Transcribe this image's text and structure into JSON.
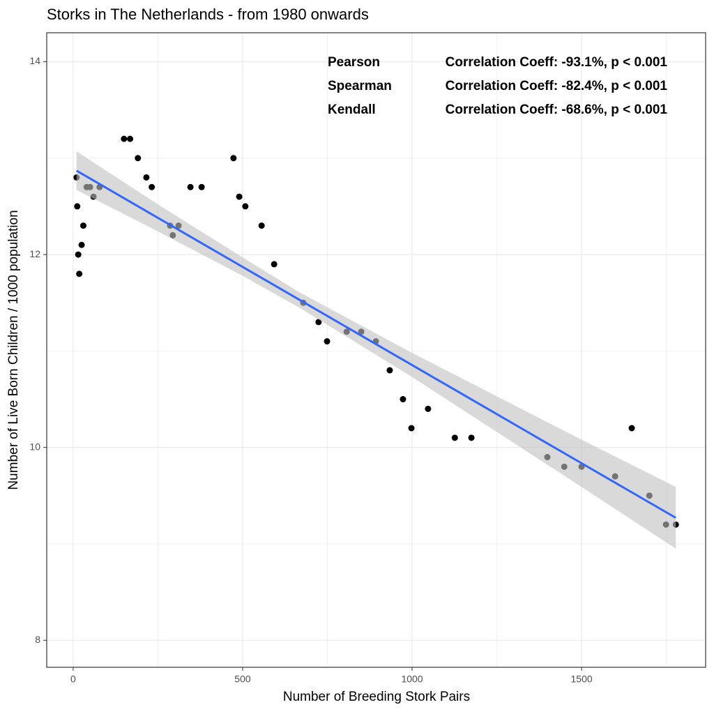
{
  "chart_data": {
    "type": "scatter",
    "title": "Storks in The Netherlands - from 1980 onwards",
    "x_label": "Number of Breeding Stork Pairs",
    "y_label": "Number of Live Born Children / 1000 population",
    "annotations": [
      {
        "method": "Pearson",
        "text": "Correlation Coeff: -93.1%, p < 0.001"
      },
      {
        "method": "Spearman",
        "text": "Correlation Coeff: -82.4%, p < 0.001"
      },
      {
        "method": "Kendall",
        "text": "Correlation Coeff: -68.6%, p < 0.001"
      }
    ],
    "x": [
      10,
      12,
      15,
      18,
      25,
      30,
      40,
      50,
      60,
      78,
      150,
      168,
      191,
      216,
      232,
      286,
      294,
      311,
      346,
      379,
      473,
      490,
      508,
      556,
      593,
      679,
      724,
      749,
      807,
      850,
      893,
      934,
      973,
      998,
      1047,
      1126,
      1175,
      1399,
      1449,
      1500,
      1599,
      1648,
      1700,
      1749,
      1778
    ],
    "values": [
      12.8,
      12.5,
      12.0,
      11.8,
      12.1,
      12.3,
      12.7,
      12.7,
      12.6,
      12.7,
      13.2,
      13.2,
      13.0,
      12.8,
      12.7,
      12.3,
      12.2,
      12.3,
      12.7,
      12.7,
      13.0,
      12.6,
      12.5,
      12.3,
      11.9,
      11.5,
      11.3,
      11.1,
      11.2,
      11.2,
      11.1,
      10.8,
      10.5,
      10.2,
      10.4,
      10.1,
      10.1,
      9.9,
      9.8,
      9.8,
      9.7,
      10.2,
      9.5,
      9.2,
      9.2
    ],
    "color": "#000000",
    "fit": {
      "x": [
        10,
        250,
        500,
        667,
        1000,
        1250,
        1500,
        1778
      ],
      "values": [
        12.87,
        12.381,
        11.872,
        11.532,
        10.854,
        10.345,
        9.836,
        9.27
      ],
      "lower": [
        12.67,
        12.24,
        11.78,
        11.45,
        10.73,
        10.16,
        9.59,
        8.95
      ],
      "upper": [
        13.07,
        12.52,
        11.97,
        11.61,
        10.98,
        10.53,
        10.08,
        9.59
      ],
      "color": "#3366ff",
      "band_color": "#bfbfbf"
    },
    "xlim": [
      -78,
      1866
    ],
    "xticks": [
      0,
      500,
      1000,
      1500
    ],
    "ylim": [
      7.72,
      14.3
    ],
    "yticks": [
      8,
      10,
      12,
      14
    ],
    "grid": true
  }
}
